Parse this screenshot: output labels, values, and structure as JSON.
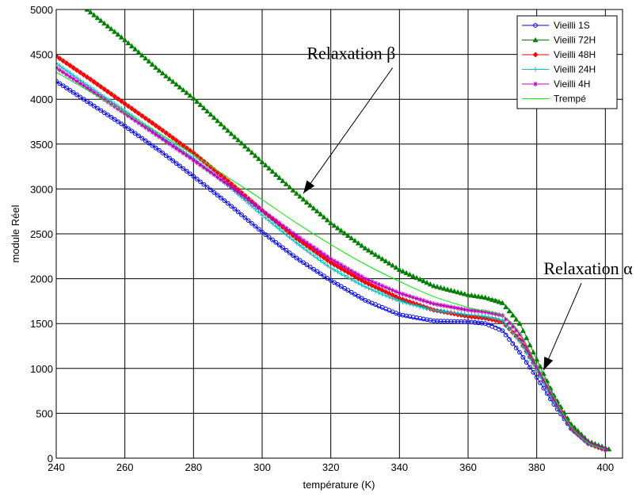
{
  "chart_data": {
    "type": "line",
    "title": "",
    "xlabel": "température (K)",
    "ylabel": "module Réel",
    "xlim": [
      240,
      405
    ],
    "ylim": [
      0,
      5000
    ],
    "xticks": [
      "240",
      "260",
      "280",
      "300",
      "320",
      "340",
      "360",
      "380",
      "400"
    ],
    "yticks": [
      "0",
      "500",
      "1000",
      "1500",
      "2000",
      "2500",
      "3000",
      "3500",
      "4000",
      "4500",
      "5000"
    ],
    "grid": true,
    "legend_position": "top-right",
    "series": [
      {
        "name": "Vieilli 1S",
        "color": "#0000ff",
        "marker": "circle",
        "points": [
          [
            240,
            4200
          ],
          [
            250,
            3950
          ],
          [
            260,
            3700
          ],
          [
            270,
            3430
          ],
          [
            280,
            3140
          ],
          [
            290,
            2840
          ],
          [
            300,
            2520
          ],
          [
            310,
            2230
          ],
          [
            320,
            1980
          ],
          [
            330,
            1760
          ],
          [
            340,
            1600
          ],
          [
            350,
            1530
          ],
          [
            360,
            1520
          ],
          [
            365,
            1500
          ],
          [
            370,
            1420
          ],
          [
            375,
            1180
          ],
          [
            380,
            900
          ],
          [
            385,
            600
          ],
          [
            390,
            330
          ],
          [
            395,
            170
          ],
          [
            400,
            100
          ]
        ]
      },
      {
        "name": "Vieilli 72H",
        "color": "#008000",
        "marker": "triangle",
        "points": [
          [
            249,
            5000
          ],
          [
            260,
            4660
          ],
          [
            270,
            4320
          ],
          [
            280,
            4010
          ],
          [
            290,
            3650
          ],
          [
            300,
            3300
          ],
          [
            310,
            2950
          ],
          [
            320,
            2620
          ],
          [
            330,
            2340
          ],
          [
            340,
            2100
          ],
          [
            350,
            1920
          ],
          [
            360,
            1820
          ],
          [
            365,
            1790
          ],
          [
            370,
            1730
          ],
          [
            375,
            1500
          ],
          [
            380,
            1100
          ],
          [
            385,
            700
          ],
          [
            390,
            380
          ],
          [
            395,
            190
          ],
          [
            401,
            100
          ]
        ]
      },
      {
        "name": "Vieilli 48H",
        "color": "#ff0000",
        "marker": "diamond",
        "points": [
          [
            240,
            4480
          ],
          [
            250,
            4220
          ],
          [
            260,
            3950
          ],
          [
            270,
            3680
          ],
          [
            280,
            3400
          ],
          [
            290,
            3090
          ],
          [
            300,
            2760
          ],
          [
            310,
            2450
          ],
          [
            320,
            2180
          ],
          [
            330,
            1960
          ],
          [
            340,
            1780
          ],
          [
            350,
            1650
          ],
          [
            360,
            1580
          ],
          [
            365,
            1560
          ],
          [
            370,
            1520
          ],
          [
            375,
            1320
          ],
          [
            380,
            1000
          ],
          [
            385,
            640
          ],
          [
            390,
            330
          ],
          [
            395,
            160
          ],
          [
            400,
            90
          ]
        ]
      },
      {
        "name": "Vieilli 24H",
        "color": "#00bfbf",
        "marker": "plus",
        "points": [
          [
            240,
            4400
          ],
          [
            250,
            4130
          ],
          [
            260,
            3870
          ],
          [
            270,
            3600
          ],
          [
            280,
            3340
          ],
          [
            290,
            3040
          ],
          [
            300,
            2710
          ],
          [
            310,
            2400
          ],
          [
            320,
            2120
          ],
          [
            330,
            1910
          ],
          [
            340,
            1750
          ],
          [
            350,
            1650
          ],
          [
            360,
            1600
          ],
          [
            365,
            1580
          ],
          [
            370,
            1530
          ],
          [
            375,
            1300
          ],
          [
            380,
            980
          ],
          [
            385,
            620
          ],
          [
            390,
            320
          ],
          [
            395,
            160
          ],
          [
            400,
            90
          ]
        ]
      },
      {
        "name": "Vieilli 4H",
        "color": "#bf00bf",
        "marker": "star",
        "points": [
          [
            240,
            4350
          ],
          [
            250,
            4100
          ],
          [
            260,
            3840
          ],
          [
            270,
            3580
          ],
          [
            280,
            3320
          ],
          [
            290,
            3050
          ],
          [
            300,
            2760
          ],
          [
            310,
            2480
          ],
          [
            320,
            2220
          ],
          [
            330,
            2000
          ],
          [
            340,
            1840
          ],
          [
            350,
            1720
          ],
          [
            360,
            1650
          ],
          [
            365,
            1630
          ],
          [
            370,
            1590
          ],
          [
            375,
            1380
          ],
          [
            380,
            1020
          ],
          [
            385,
            660
          ],
          [
            390,
            330
          ],
          [
            395,
            170
          ],
          [
            400,
            100
          ]
        ]
      },
      {
        "name": "Trempé",
        "color": "#00ee00",
        "marker": "none",
        "points": [
          [
            240,
            4300
          ],
          [
            250,
            4080
          ],
          [
            260,
            3850
          ],
          [
            270,
            3620
          ],
          [
            280,
            3380
          ],
          [
            290,
            3130
          ],
          [
            300,
            2880
          ],
          [
            310,
            2620
          ],
          [
            320,
            2380
          ],
          [
            330,
            2160
          ],
          [
            340,
            1970
          ],
          [
            350,
            1800
          ],
          [
            360,
            1680
          ],
          [
            365,
            1640
          ],
          [
            370,
            1590
          ],
          [
            375,
            1400
          ],
          [
            380,
            1040
          ],
          [
            385,
            680
          ],
          [
            390,
            350
          ],
          [
            395,
            170
          ],
          [
            400,
            100
          ]
        ]
      }
    ],
    "annotations": [
      {
        "id": "beta",
        "text": "Relaxation β",
        "text_at": [
          313,
          4450
        ],
        "arrow_from": [
          338,
          4350
        ],
        "arrow_to": [
          312,
          2950
        ]
      },
      {
        "id": "alpha",
        "text": "Relaxation α",
        "text_at": [
          382,
          2050
        ],
        "arrow_from": [
          393,
          1950
        ],
        "arrow_to": [
          382,
          980
        ]
      }
    ]
  }
}
